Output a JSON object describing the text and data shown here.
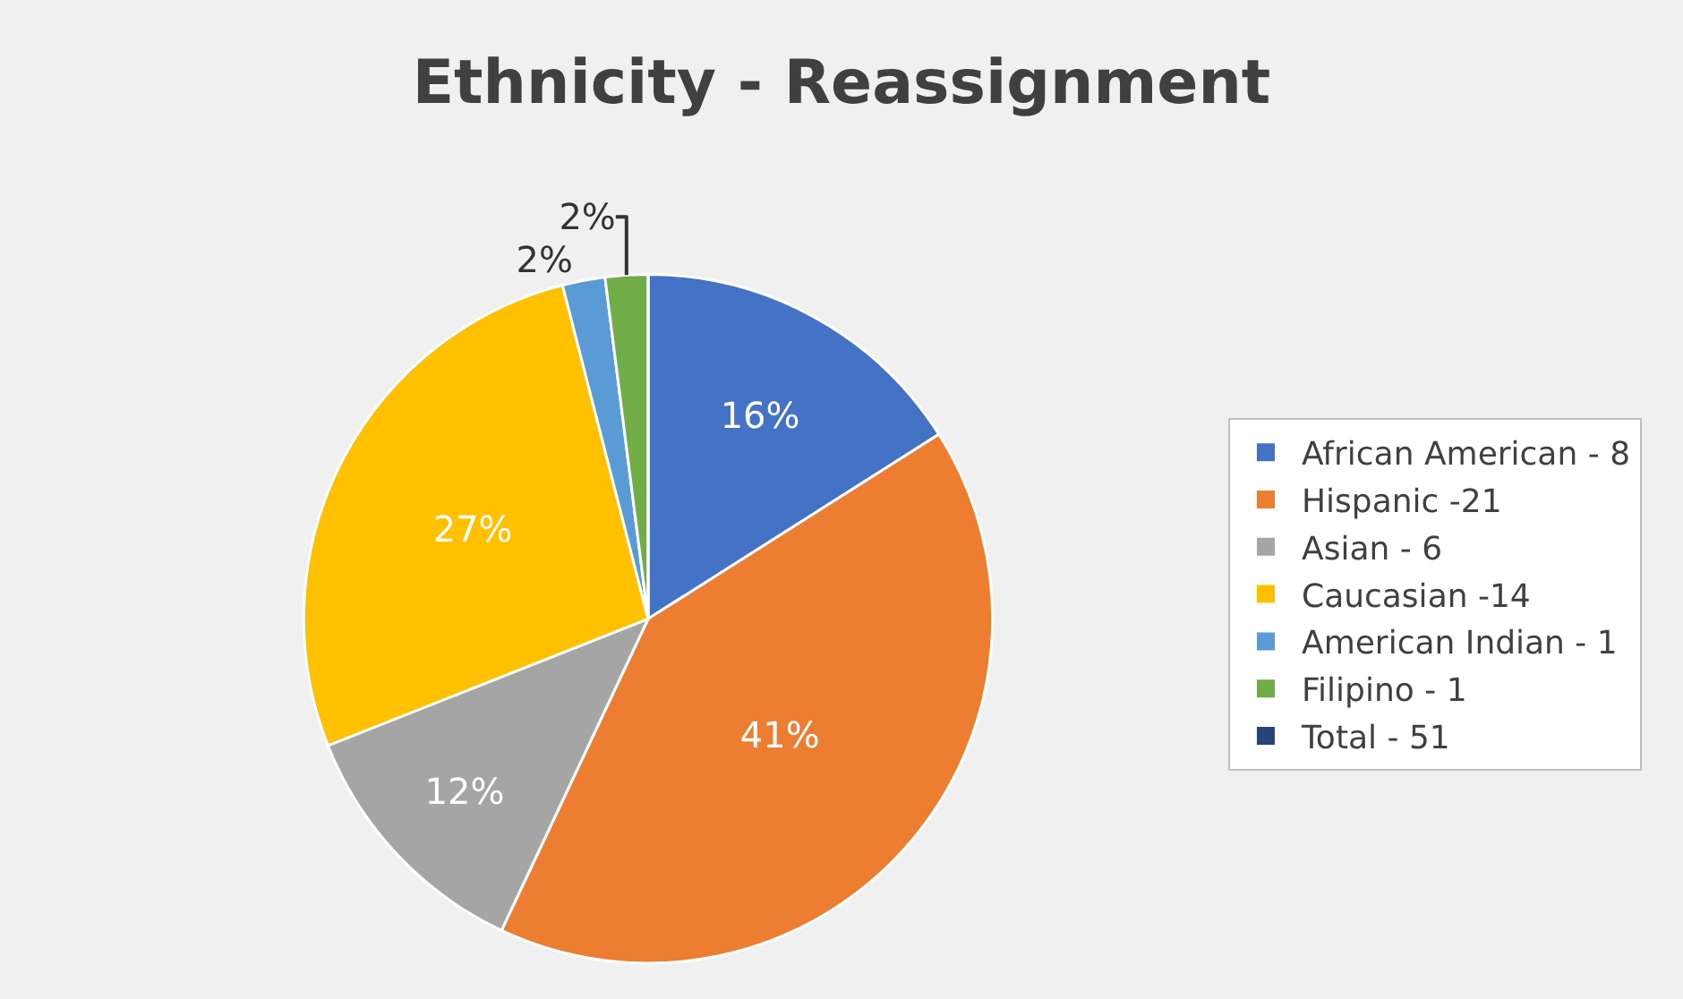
{
  "chart_data": {
    "type": "pie",
    "title": "Ethnicity - Reassignment",
    "categories": [
      "African American - 8",
      "Hispanic -21",
      "Asian - 6",
      "Caucasian -14",
      "American Indian - 1",
      "Filipino - 1",
      "Total - 51"
    ],
    "values": [
      16,
      41,
      12,
      27,
      2,
      2,
      0
    ],
    "colors": [
      "#4472c4",
      "#ed7d31",
      "#a5a5a5",
      "#ffc000",
      "#5b9bd5",
      "#70ad47",
      "#264478"
    ],
    "value_labels": [
      "16%",
      "41%",
      "12%",
      "27%",
      "2%",
      "2%",
      null
    ],
    "legend": "right"
  }
}
